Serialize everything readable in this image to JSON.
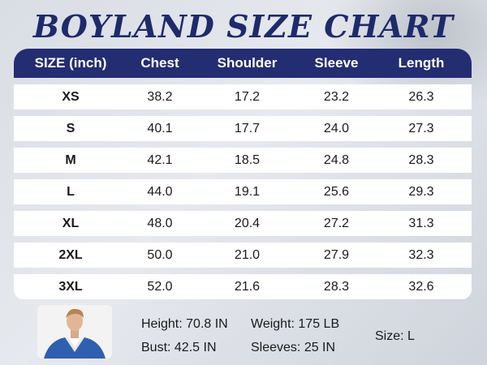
{
  "title": "BOYLAND SIZE CHART",
  "table": {
    "headers": [
      "SIZE (inch)",
      "Chest",
      "Shoulder",
      "Sleeve",
      "Length"
    ],
    "rows": [
      [
        "XS",
        "38.2",
        "17.2",
        "23.2",
        "26.3"
      ],
      [
        "S",
        "40.1",
        "17.7",
        "24.0",
        "27.3"
      ],
      [
        "M",
        "42.1",
        "18.5",
        "24.8",
        "28.3"
      ],
      [
        "L",
        "44.0",
        "19.1",
        "25.6",
        "29.3"
      ],
      [
        "XL",
        "48.0",
        "20.4",
        "27.2",
        "31.3"
      ],
      [
        "2XL",
        "50.0",
        "21.0",
        "27.9",
        "32.3"
      ],
      [
        "3XL",
        "52.0",
        "21.6",
        "28.3",
        "32.6"
      ]
    ]
  },
  "model": {
    "height": "Height: 70.8 IN",
    "weight": "Weight: 175 LB",
    "bust": "Bust: 42.5 IN",
    "sleeves": "Sleeves: 25 IN",
    "size": "Size: L"
  },
  "colors": {
    "header_bg": "#232d72",
    "title": "#1f2a6b",
    "suit": "#2f5fb0"
  }
}
